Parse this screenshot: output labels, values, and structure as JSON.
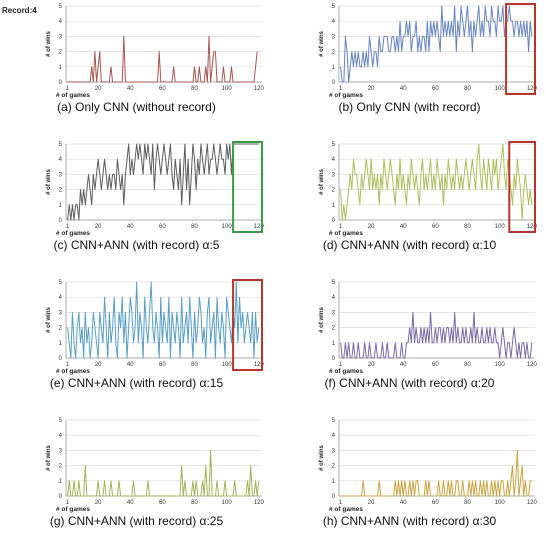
{
  "page": {
    "title": "Record:4"
  },
  "colors": {
    "gridline": "#dcdcdc",
    "axis": "#999999",
    "highlight_red": "#b5362a",
    "highlight_green": "#3c9a4a"
  },
  "chart_data": [
    {
      "id": "a",
      "type": "line",
      "caption": "(a) Only CNN (without record)",
      "ylabel": "# of wins",
      "xlabel": "# of games",
      "xlim": [
        0,
        122
      ],
      "ylim": [
        0,
        5
      ],
      "xticks": [
        1,
        20,
        40,
        60,
        80,
        100,
        120
      ],
      "yticks": [
        0,
        1,
        2,
        3,
        4,
        5
      ],
      "grid": true,
      "color": "#a4564d",
      "highlight": null,
      "series": [
        {
          "values": [
            0,
            0,
            0,
            0,
            0,
            0,
            0,
            0,
            0,
            0,
            0,
            0,
            0,
            0,
            0,
            1,
            0,
            2,
            0,
            1,
            2,
            0,
            0,
            0,
            0,
            0,
            0,
            1,
            0,
            0,
            0,
            0,
            0,
            0,
            0,
            3,
            0,
            0,
            0,
            0,
            0,
            0,
            0,
            0,
            0,
            0,
            0,
            0,
            0,
            0,
            0,
            0,
            0,
            0,
            0,
            0,
            0,
            2,
            0,
            0,
            0,
            0,
            0,
            0,
            0,
            0,
            1,
            0,
            0,
            0,
            0,
            0,
            0,
            0,
            0,
            0,
            0,
            0,
            0,
            1,
            0,
            0,
            1,
            0,
            0,
            0,
            1,
            0,
            3,
            0,
            1,
            2,
            2,
            0,
            0,
            0,
            0,
            1,
            0,
            0,
            0,
            0,
            1,
            0,
            0,
            0,
            0,
            0,
            0,
            0,
            0,
            0,
            0,
            0,
            0,
            0,
            0,
            1,
            2
          ]
        }
      ]
    },
    {
      "id": "b",
      "type": "line",
      "caption": "(b) Only CNN (with record)",
      "ylabel": "# of wins",
      "xlabel": "# of games",
      "xlim": [
        0,
        122
      ],
      "ylim": [
        0,
        5
      ],
      "xticks": [
        1,
        20,
        40,
        60,
        80,
        100,
        120
      ],
      "yticks": [
        0,
        1,
        2,
        3,
        4,
        5
      ],
      "grid": true,
      "color": "#6784be",
      "highlight": {
        "from": 104,
        "to": 122,
        "color": "#b5362a"
      },
      "series": [
        {
          "values": [
            1,
            0,
            0,
            3,
            2,
            0,
            1,
            2,
            1,
            2,
            1,
            2,
            1,
            1,
            2,
            1,
            2,
            1,
            3,
            2,
            1,
            2,
            2,
            1,
            3,
            2,
            2,
            3,
            3,
            3,
            2,
            2,
            3,
            3,
            2,
            3,
            2,
            4,
            2,
            3,
            3,
            4,
            3,
            4,
            2,
            3,
            3,
            4,
            2,
            3,
            2,
            3,
            3,
            2,
            4,
            2,
            4,
            3,
            4,
            3,
            4,
            3,
            2,
            5,
            3,
            4,
            3,
            4,
            3,
            4,
            3,
            5,
            2,
            4,
            3,
            5,
            4,
            3,
            4,
            5,
            3,
            4,
            2,
            4,
            3,
            4,
            5,
            3,
            4,
            3,
            5,
            4,
            4,
            3,
            5,
            4,
            4,
            3,
            5,
            4,
            4,
            5,
            3,
            4,
            4,
            5,
            4,
            4,
            3,
            4,
            4,
            3,
            4,
            3,
            4,
            3,
            4,
            2,
            4,
            3
          ]
        }
      ]
    },
    {
      "id": "c",
      "type": "line",
      "caption": "(c) CNN+ANN (with record) α:5",
      "ylabel": "# of wins",
      "xlabel": "# of games",
      "xlim": [
        0,
        122
      ],
      "ylim": [
        0,
        5
      ],
      "xticks": [
        1,
        20,
        40,
        60,
        80,
        100,
        120
      ],
      "yticks": [
        0,
        1,
        2,
        3,
        4,
        5
      ],
      "grid": true,
      "color": "#5d5d5d",
      "highlight": {
        "from": 104,
        "to": 122,
        "color": "#3c9a4a"
      },
      "series": [
        {
          "values": [
            0,
            1,
            0,
            1,
            0,
            1,
            1,
            0,
            2,
            1,
            2,
            1,
            2,
            3,
            2,
            1,
            3,
            2,
            3,
            4,
            3,
            2,
            3,
            4,
            3,
            2,
            3,
            2,
            3,
            3,
            2,
            4,
            3,
            2,
            3,
            1,
            3,
            4,
            5,
            3,
            4,
            3,
            4,
            5,
            4,
            5,
            4,
            3,
            5,
            4,
            5,
            4,
            3,
            5,
            2,
            4,
            5,
            4,
            3,
            4,
            5,
            4,
            3,
            4,
            5,
            3,
            2,
            4,
            3,
            2,
            4,
            1,
            3,
            5,
            2,
            4,
            1,
            3,
            5,
            4,
            2,
            4,
            3,
            5,
            4,
            3,
            4,
            5,
            3,
            4,
            4,
            5,
            4,
            3,
            4,
            5,
            4,
            4,
            3,
            5,
            4,
            5,
            3,
            5,
            5,
            5,
            5,
            5,
            5,
            5,
            5,
            5,
            5,
            5,
            5,
            5,
            5,
            5,
            5,
            5
          ]
        }
      ]
    },
    {
      "id": "d",
      "type": "line",
      "caption": "(d) CNN+ANN (with record) α:10",
      "ylabel": "# of wins",
      "xlabel": "# of games",
      "xlim": [
        0,
        122
      ],
      "ylim": [
        0,
        5
      ],
      "xticks": [
        1,
        20,
        40,
        60,
        80,
        100,
        120
      ],
      "yticks": [
        0,
        1,
        2,
        3,
        4,
        5
      ],
      "grid": true,
      "color": "#aebd5f",
      "highlight": {
        "from": 106,
        "to": 122,
        "color": "#b5362a"
      },
      "series": [
        {
          "values": [
            2,
            0,
            1,
            0,
            1,
            2,
            3,
            2,
            4,
            3,
            3,
            2,
            1,
            3,
            2,
            3,
            4,
            3,
            2,
            4,
            2,
            3,
            2,
            3,
            1,
            3,
            2,
            4,
            3,
            2,
            3,
            4,
            3,
            2,
            1,
            3,
            2,
            4,
            2,
            3,
            2,
            1,
            3,
            2,
            4,
            3,
            2,
            3,
            2,
            1,
            3,
            4,
            2,
            3,
            2,
            3,
            4,
            2,
            3,
            2,
            4,
            3,
            2,
            3,
            1,
            3,
            2,
            4,
            3,
            2,
            3,
            2,
            4,
            3,
            2,
            3,
            2,
            3,
            4,
            3,
            2,
            3,
            4,
            3,
            2,
            4,
            5,
            3,
            2,
            4,
            3,
            2,
            4,
            3,
            2,
            4,
            3,
            4,
            2,
            3,
            4,
            5,
            3,
            2,
            4,
            3,
            2,
            1,
            3,
            2,
            4,
            3,
            2,
            0,
            2,
            3,
            2,
            1,
            2,
            1
          ]
        }
      ]
    },
    {
      "id": "e",
      "type": "line",
      "caption": "(e) CNN+ANN (with record) α:15",
      "ylabel": "# of wins",
      "xlabel": "# of games",
      "xlim": [
        0,
        122
      ],
      "ylim": [
        0,
        5
      ],
      "xticks": [
        1,
        20,
        40,
        60,
        80,
        100,
        120
      ],
      "yticks": [
        0,
        1,
        2,
        3,
        4,
        5
      ],
      "grid": true,
      "color": "#5a9ec6",
      "highlight": {
        "from": 104,
        "to": 122,
        "color": "#b5362a"
      },
      "series": [
        {
          "values": [
            2,
            1,
            0,
            3,
            1,
            0,
            2,
            3,
            1,
            2,
            0,
            3,
            1,
            2,
            0,
            1,
            3,
            2,
            1,
            0,
            3,
            2,
            1,
            4,
            2,
            0,
            3,
            1,
            2,
            4,
            1,
            0,
            3,
            2,
            4,
            1,
            3,
            0,
            2,
            4,
            3,
            1,
            2,
            5,
            1,
            3,
            2,
            0,
            4,
            2,
            1,
            3,
            5,
            2,
            1,
            3,
            2,
            0,
            4,
            1,
            3,
            2,
            1,
            4,
            0,
            3,
            2,
            1,
            3,
            2,
            0,
            4,
            1,
            2,
            3,
            1,
            4,
            2,
            0,
            3,
            1,
            2,
            4,
            3,
            1,
            2,
            0,
            3,
            4,
            1,
            2,
            3,
            0,
            4,
            2,
            1,
            3,
            2,
            0,
            4,
            3,
            2,
            1,
            3,
            2,
            5,
            1,
            4,
            2,
            3,
            1,
            2,
            3,
            2,
            1,
            3,
            0,
            3,
            1,
            2
          ]
        }
      ]
    },
    {
      "id": "f",
      "type": "line",
      "caption": "(f) CNN+ANN (with record) α:20",
      "ylabel": "# of wins",
      "xlabel": "# of games",
      "xlim": [
        0,
        122
      ],
      "ylim": [
        0,
        5
      ],
      "xticks": [
        1,
        20,
        40,
        60,
        80,
        100,
        120
      ],
      "yticks": [
        0,
        1,
        2,
        3,
        4,
        5
      ],
      "grid": true,
      "color": "#7b68a6",
      "highlight": null,
      "series": [
        {
          "values": [
            1,
            0,
            0,
            1,
            0,
            1,
            0,
            0,
            1,
            0,
            0,
            1,
            0,
            0,
            0,
            1,
            0,
            0,
            1,
            0,
            0,
            0,
            1,
            0,
            0,
            0,
            1,
            0,
            0,
            1,
            0,
            0,
            0,
            0,
            1,
            0,
            0,
            0,
            1,
            0,
            0,
            1,
            1,
            2,
            1,
            3,
            1,
            2,
            1,
            1,
            2,
            1,
            2,
            1,
            2,
            1,
            3,
            1,
            1,
            2,
            1,
            2,
            2,
            1,
            2,
            1,
            2,
            2,
            1,
            2,
            1,
            3,
            1,
            2,
            1,
            1,
            2,
            1,
            2,
            1,
            1,
            2,
            1,
            3,
            1,
            2,
            1,
            1,
            2,
            1,
            1,
            2,
            1,
            2,
            1,
            1,
            2,
            1,
            1,
            0,
            1,
            2,
            1,
            0,
            1,
            1,
            0,
            1,
            2,
            1,
            0,
            1,
            0,
            1,
            1,
            0,
            1,
            0,
            0,
            1
          ]
        }
      ]
    },
    {
      "id": "g",
      "type": "line",
      "caption": "(g) CNN+ANN (with record) α:25",
      "ylabel": "# of wins",
      "xlabel": "# of games",
      "xlim": [
        0,
        122
      ],
      "ylim": [
        0,
        5
      ],
      "xticks": [
        1,
        20,
        40,
        60,
        80,
        100,
        120
      ],
      "yticks": [
        0,
        1,
        2,
        3,
        4,
        5
      ],
      "grid": true,
      "color": "#a3b35a",
      "highlight": null,
      "series": [
        {
          "values": [
            0,
            1,
            0,
            0,
            1,
            0,
            0,
            1,
            0,
            0,
            0,
            2,
            0,
            0,
            0,
            0,
            0,
            0,
            0,
            1,
            0,
            0,
            0,
            1,
            0,
            0,
            0,
            1,
            0,
            0,
            0,
            0,
            1,
            0,
            0,
            0,
            0,
            0,
            0,
            0,
            0,
            1,
            0,
            0,
            0,
            0,
            0,
            0,
            0,
            0,
            1,
            0,
            0,
            0,
            0,
            0,
            0,
            0,
            0,
            0,
            0,
            0,
            0,
            0,
            0,
            0,
            0,
            0,
            0,
            0,
            0,
            2,
            0,
            1,
            0,
            0,
            0,
            0,
            1,
            0,
            1,
            0,
            0,
            0,
            1,
            0,
            2,
            0,
            0,
            3,
            0,
            0,
            0,
            1,
            0,
            0,
            0,
            0,
            1,
            0,
            0,
            0,
            0,
            0,
            1,
            0,
            0,
            0,
            0,
            0,
            0,
            0,
            1,
            0,
            2,
            0,
            0,
            1,
            0,
            1
          ]
        }
      ]
    },
    {
      "id": "h",
      "type": "line",
      "caption": "(h) CNN+ANN (with record) α:30",
      "ylabel": "# of wins",
      "xlabel": "# of games",
      "xlim": [
        0,
        122
      ],
      "ylim": [
        0,
        5
      ],
      "xticks": [
        1,
        20,
        40,
        60,
        80,
        100,
        120
      ],
      "yticks": [
        0,
        1,
        2,
        3,
        4,
        5
      ],
      "grid": true,
      "color": "#c9a441",
      "highlight": null,
      "series": [
        {
          "values": [
            0,
            0,
            0,
            0,
            0,
            0,
            0,
            0,
            0,
            0,
            0,
            0,
            0,
            0,
            1,
            0,
            0,
            0,
            0,
            0,
            0,
            0,
            0,
            0,
            1,
            0,
            0,
            0,
            0,
            0,
            0,
            0,
            0,
            0,
            1,
            0,
            1,
            0,
            1,
            0,
            1,
            0,
            0,
            1,
            0,
            1,
            0,
            1,
            1,
            0,
            0,
            0,
            0,
            1,
            0,
            1,
            0,
            0,
            0,
            0,
            0,
            1,
            0,
            0,
            1,
            0,
            0,
            1,
            0,
            1,
            0,
            0,
            1,
            1,
            0,
            0,
            1,
            0,
            0,
            0,
            1,
            0,
            1,
            0,
            1,
            0,
            0,
            1,
            0,
            1,
            0,
            1,
            0,
            0,
            1,
            0,
            1,
            0,
            1,
            0,
            1,
            1,
            0,
            0,
            1,
            0,
            1,
            2,
            0,
            1,
            3,
            0,
            1,
            2,
            0,
            1,
            0,
            0,
            1,
            1
          ]
        }
      ]
    }
  ]
}
